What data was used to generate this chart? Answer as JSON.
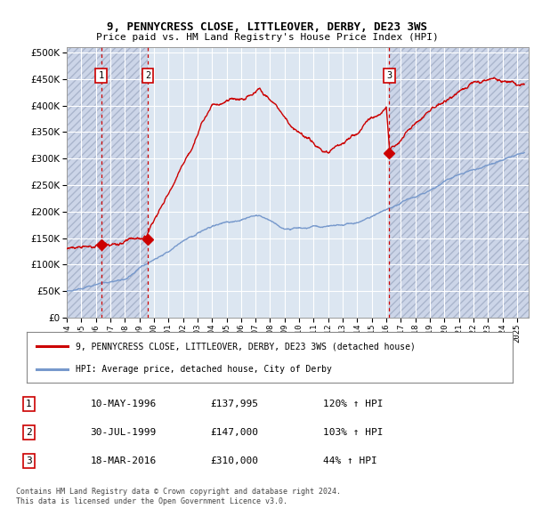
{
  "title1": "9, PENNYCRESS CLOSE, LITTLEOVER, DERBY, DE23 3WS",
  "title2": "Price paid vs. HM Land Registry's House Price Index (HPI)",
  "ytick_vals": [
    0,
    50000,
    100000,
    150000,
    200000,
    250000,
    300000,
    350000,
    400000,
    450000,
    500000
  ],
  "xlim_start": 1994.0,
  "xlim_end": 2025.8,
  "ylim_min": 0,
  "ylim_max": 510000,
  "sale_dates": [
    1996.36,
    1999.58,
    2016.21
  ],
  "sale_prices": [
    137995,
    147000,
    310000
  ],
  "sale_labels": [
    "1",
    "2",
    "3"
  ],
  "legend_red": "9, PENNYCRESS CLOSE, LITTLEOVER, DERBY, DE23 3WS (detached house)",
  "legend_blue": "HPI: Average price, detached house, City of Derby",
  "table_rows": [
    [
      "1",
      "10-MAY-1996",
      "£137,995",
      "120% ↑ HPI"
    ],
    [
      "2",
      "30-JUL-1999",
      "£147,000",
      "103% ↑ HPI"
    ],
    [
      "3",
      "18-MAR-2016",
      "£310,000",
      "44% ↑ HPI"
    ]
  ],
  "footnote1": "Contains HM Land Registry data © Crown copyright and database right 2024.",
  "footnote2": "This data is licensed under the Open Government Licence v3.0.",
  "red_color": "#cc0000",
  "blue_color": "#7799cc",
  "plot_bg": "#dce6f1",
  "shade_color": "#ccd5e8",
  "hatch_color": "#aab5cc"
}
